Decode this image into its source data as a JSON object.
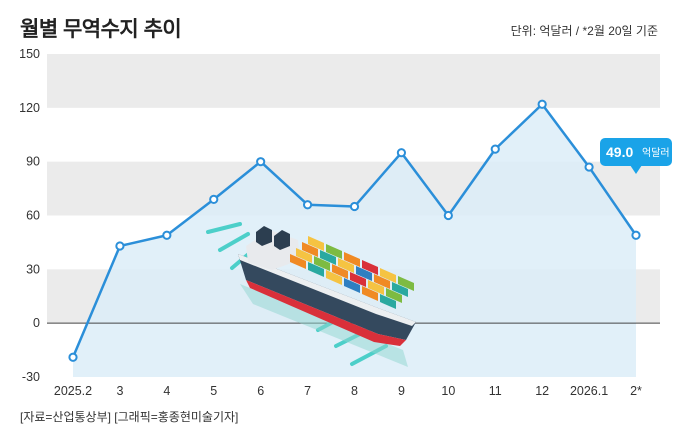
{
  "title": "월별 무역수지 추이",
  "unit_note": "단위: 억달러 / *2월 20일 기준",
  "source": "[자료=산업통상부] [그래픽=홍종현미술기자]",
  "callout": {
    "value": "49.0",
    "unit": "억달러"
  },
  "colors": {
    "line": "#2b8fd9",
    "fill": "#dcedf8",
    "callout": "#1aa3e8",
    "band": "#ebebeb"
  },
  "illustration": "container-ship",
  "chart_data": {
    "type": "area",
    "categories": [
      "2025.2",
      "3",
      "4",
      "5",
      "6",
      "7",
      "8",
      "9",
      "10",
      "11",
      "12",
      "2026.1",
      "2*"
    ],
    "values": [
      -19,
      43,
      49,
      69,
      90,
      66,
      65,
      95,
      60,
      97,
      122,
      87,
      49
    ],
    "ylim": [
      -30,
      150
    ],
    "yticks": [
      -30,
      0,
      30,
      60,
      90,
      120,
      150
    ],
    "title": "월별 무역수지 추이",
    "xlabel": "",
    "ylabel": "",
    "grid": "alternating horizontal bands",
    "annotation": {
      "index": 12,
      "text": "49.0 억달러"
    }
  }
}
